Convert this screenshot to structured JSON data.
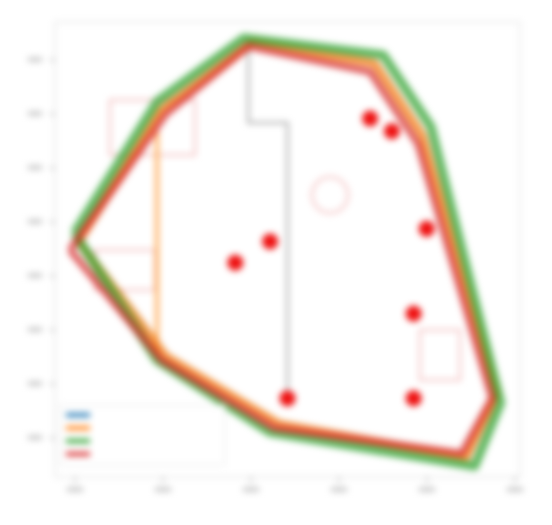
{
  "chart_data": {
    "type": "scatter",
    "title": "",
    "xlabel": "",
    "ylabel": "",
    "xlim": [
      0,
      10
    ],
    "ylim": [
      0,
      10
    ],
    "grid": false,
    "legend_placement": "bottom-left",
    "colors": {
      "frame": "#dddddd",
      "points": "#ee1111",
      "inner_lines": "#999999",
      "faint_red": "#f2b8b8"
    },
    "series": [
      {
        "color": "#1f77b4",
        "points": [
          [
            0.2,
            5.2
          ],
          [
            2.1,
            8.3
          ],
          [
            4.2,
            9.9
          ],
          [
            7.0,
            9.4
          ],
          [
            8.1,
            7.7
          ],
          [
            9.8,
            1.6
          ],
          [
            9.1,
            0.1
          ],
          [
            4.8,
            0.9
          ],
          [
            2.2,
            2.5
          ]
        ]
      },
      {
        "color": "#ff7f0e",
        "points": [
          [
            0.2,
            5.2
          ],
          [
            2.1,
            8.3
          ],
          [
            4.2,
            9.9
          ],
          [
            7.0,
            9.4
          ],
          [
            8.1,
            7.7
          ],
          [
            9.8,
            1.6
          ],
          [
            9.1,
            0.1
          ],
          [
            4.8,
            0.9
          ],
          [
            2.2,
            2.5
          ]
        ]
      },
      {
        "color": "#2ca02c",
        "points": [
          [
            0.1,
            5.4
          ],
          [
            2.0,
            8.5
          ],
          [
            4.0,
            10.0
          ],
          [
            7.2,
            9.6
          ],
          [
            8.3,
            7.9
          ],
          [
            9.9,
            1.4
          ],
          [
            9.3,
            -0.1
          ],
          [
            4.6,
            0.7
          ],
          [
            2.0,
            2.4
          ]
        ]
      },
      {
        "color": "#d62728",
        "points": [
          [
            0.0,
            5.0
          ],
          [
            2.2,
            8.2
          ],
          [
            4.1,
            9.8
          ],
          [
            6.9,
            9.2
          ],
          [
            8.0,
            7.5
          ],
          [
            9.7,
            1.5
          ],
          [
            9.0,
            0.2
          ],
          [
            4.7,
            0.8
          ],
          [
            2.1,
            2.4
          ]
        ]
      }
    ],
    "inner_path": [
      [
        2.0,
        2.5
      ],
      [
        2.0,
        7.8
      ]
    ],
    "inner_path_2": [
      [
        4.1,
        10.0
      ],
      [
        4.1,
        8.0
      ],
      [
        5.0,
        8.0
      ],
      [
        5.0,
        1.4
      ]
    ],
    "scatter_points": [
      [
        6.9,
        8.1
      ],
      [
        7.4,
        7.8
      ],
      [
        8.2,
        5.5
      ],
      [
        4.6,
        5.2
      ],
      [
        3.8,
        4.7
      ],
      [
        7.9,
        3.5
      ],
      [
        5.0,
        1.5
      ],
      [
        7.9,
        1.5
      ]
    ],
    "legend_entries": [
      {
        "label": "",
        "color": "#1f77b4"
      },
      {
        "label": "",
        "color": "#ff7f0e"
      },
      {
        "label": "",
        "color": "#2ca02c"
      },
      {
        "label": "",
        "color": "#d62728"
      }
    ]
  }
}
